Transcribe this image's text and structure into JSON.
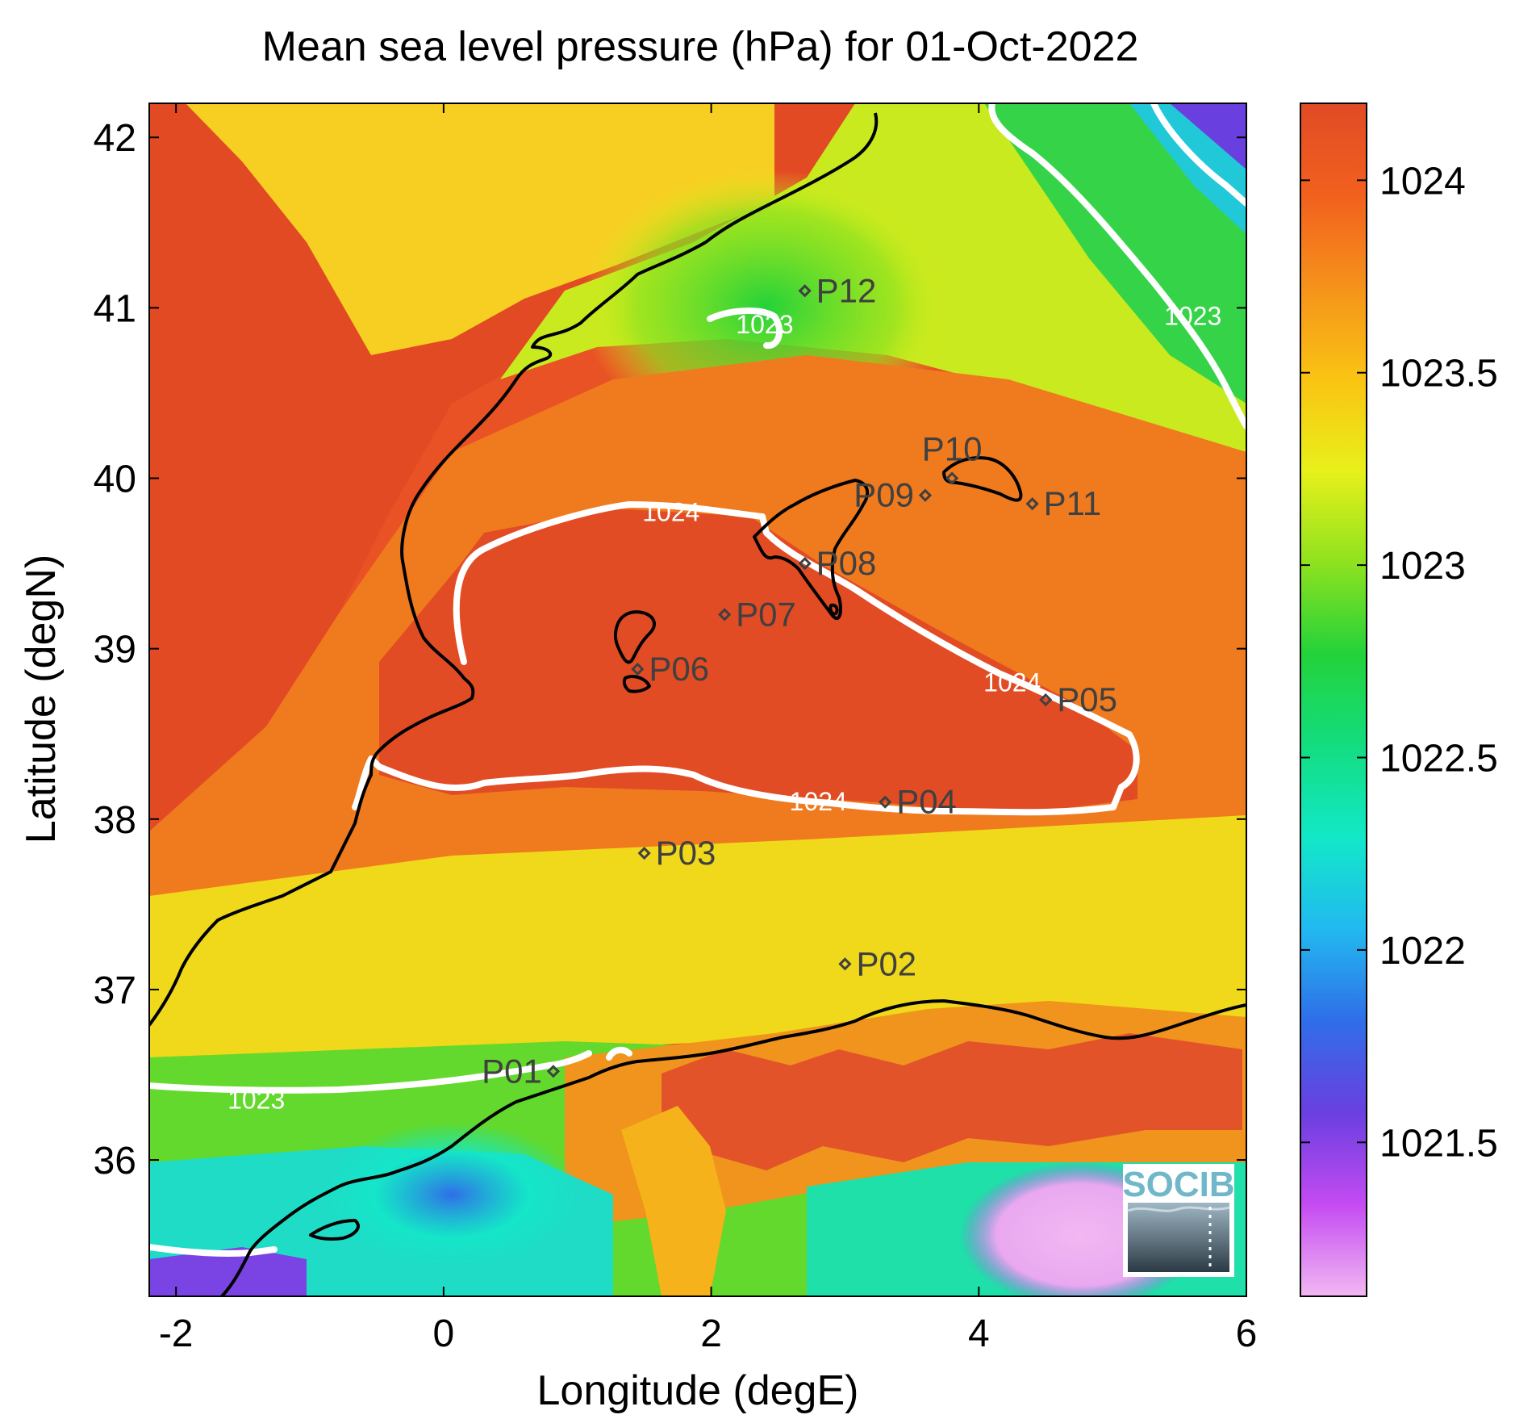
{
  "chart_data": {
    "type": "heatmap",
    "title": "Mean sea level pressure (hPa) for 01-Oct-2022",
    "xlabel": "Longitude (degE)",
    "ylabel": "Latitude (degN)",
    "xlim": [
      -2.2,
      6.0
    ],
    "ylim": [
      35.2,
      42.2
    ],
    "xticks": [
      -2,
      0,
      2,
      4,
      6
    ],
    "yticks": [
      36,
      37,
      38,
      39,
      40,
      41,
      42
    ],
    "colorbar": {
      "range": [
        1021.1,
        1024.2
      ],
      "ticks": [
        1021.5,
        1022,
        1022.5,
        1023,
        1023.5,
        1024
      ],
      "colormap": [
        "#f2b8f2",
        "#c44bf2",
        "#6a3fe0",
        "#2f6ee8",
        "#22b9f0",
        "#12e8c8",
        "#13dd80",
        "#23d23a",
        "#8fe21f",
        "#e8f01a",
        "#fac313",
        "#f5921b",
        "#f2601e",
        "#e04b25"
      ]
    },
    "contour_labels": [
      {
        "text": "1023",
        "lon": 2.4,
        "lat": 40.85
      },
      {
        "text": "1023",
        "lon": 5.6,
        "lat": 40.9
      },
      {
        "text": "1023",
        "lon": -1.4,
        "lat": 36.3
      },
      {
        "text": "1024",
        "lon": 1.7,
        "lat": 39.75
      },
      {
        "text": "1024",
        "lon": 4.25,
        "lat": 38.75
      },
      {
        "text": "1024",
        "lon": 2.8,
        "lat": 38.05
      }
    ],
    "points": [
      {
        "name": "P01",
        "lon": 0.82,
        "lat": 36.52,
        "label_side": "left"
      },
      {
        "name": "P02",
        "lon": 3.0,
        "lat": 37.15,
        "label_side": "right"
      },
      {
        "name": "P03",
        "lon": 1.5,
        "lat": 37.8,
        "label_side": "right"
      },
      {
        "name": "P04",
        "lon": 3.3,
        "lat": 38.1,
        "label_side": "right"
      },
      {
        "name": "P05",
        "lon": 4.5,
        "lat": 38.7,
        "label_side": "right"
      },
      {
        "name": "P06",
        "lon": 1.45,
        "lat": 38.88,
        "label_side": "right"
      },
      {
        "name": "P07",
        "lon": 2.1,
        "lat": 39.2,
        "label_side": "right"
      },
      {
        "name": "P08",
        "lon": 2.7,
        "lat": 39.5,
        "label_side": "right"
      },
      {
        "name": "P09",
        "lon": 3.6,
        "lat": 39.9,
        "label_side": "left"
      },
      {
        "name": "P10",
        "lon": 3.8,
        "lat": 40.0,
        "label_side": "above"
      },
      {
        "name": "P11",
        "lon": 4.4,
        "lat": 39.85,
        "label_side": "right"
      },
      {
        "name": "P12",
        "lon": 2.7,
        "lat": 41.1,
        "label_side": "right"
      }
    ]
  },
  "logo": {
    "text": "SOCIB"
  }
}
